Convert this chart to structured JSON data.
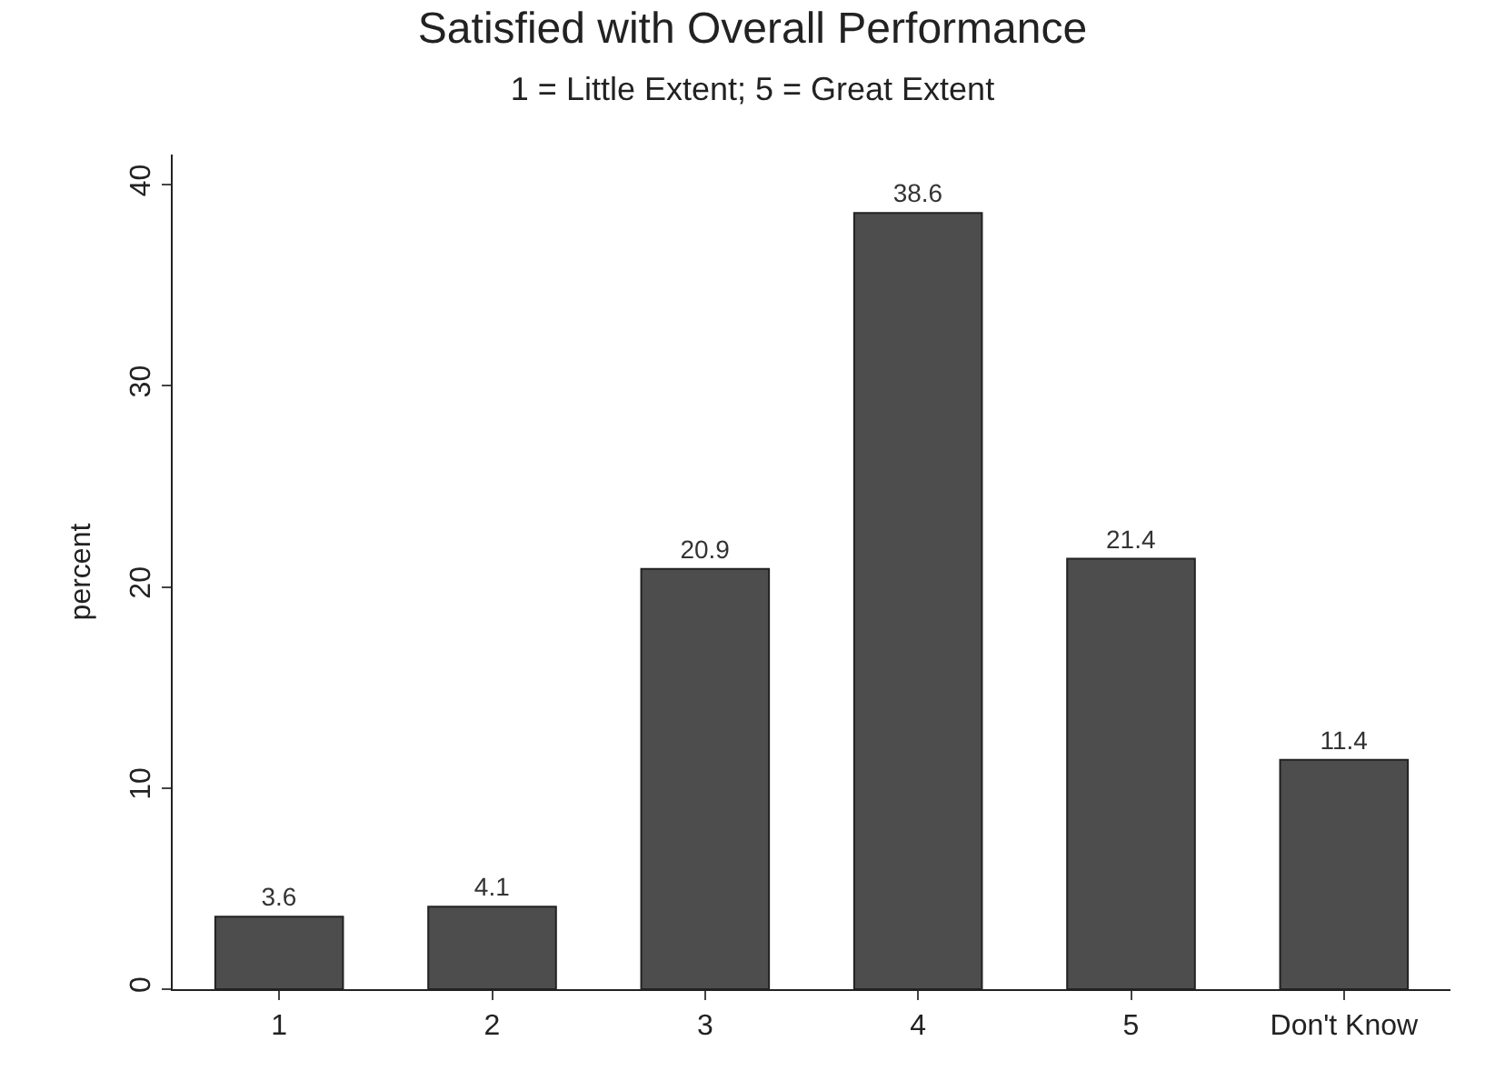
{
  "chart_data": {
    "type": "bar",
    "title": "Satisfied with Overall Performance",
    "subtitle": "1 = Little Extent; 5 = Great Extent",
    "ylabel": "percent",
    "categories": [
      "1",
      "2",
      "3",
      "4",
      "5",
      "Don't Know"
    ],
    "values": [
      3.6,
      4.1,
      20.9,
      38.6,
      21.4,
      11.4
    ],
    "color": "#4d4d4d",
    "ylim": [
      0,
      41.5
    ],
    "yticks": [
      0,
      10,
      20,
      30,
      40
    ],
    "legend": false,
    "data_labels": true
  }
}
